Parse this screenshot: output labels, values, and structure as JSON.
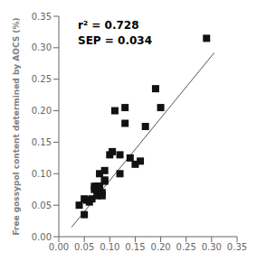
{
  "chart_data": {
    "type": "scatter",
    "title": "",
    "ylabel": "Free gossypol content determined by AOCS (%)",
    "annotation": "r² = 0.728\nSEP = 0.034",
    "xlim": [
      0.0,
      0.35
    ],
    "ylim": [
      0.0,
      0.35
    ],
    "xticks": [
      {
        "value": 0.0,
        "label": "0.00"
      },
      {
        "value": 0.05,
        "label": "0.05"
      },
      {
        "value": 0.1,
        "label": "0.10"
      },
      {
        "value": 0.15,
        "label": "0.15"
      },
      {
        "value": 0.2,
        "label": "0.20"
      },
      {
        "value": 0.25,
        "label": "0.25"
      },
      {
        "value": 0.3,
        "label": "0.30"
      },
      {
        "value": 0.35,
        "label": "0.35"
      }
    ],
    "yticks": [
      {
        "value": 0.0,
        "label": "0.00"
      },
      {
        "value": 0.05,
        "label": "0.05"
      },
      {
        "value": 0.1,
        "label": "0.10"
      },
      {
        "value": 0.15,
        "label": "0.15"
      },
      {
        "value": 0.2,
        "label": "0.20"
      },
      {
        "value": 0.25,
        "label": "0.25"
      },
      {
        "value": 0.3,
        "label": "0.30"
      },
      {
        "value": 0.35,
        "label": "0.35"
      }
    ],
    "grid": false,
    "series": [
      {
        "type": "line",
        "color": "#555555",
        "line_style": "solid",
        "x": [
          0.025,
          0.305
        ],
        "values": [
          0.015,
          0.292
        ]
      },
      {
        "type": "scatter",
        "color": "#111111",
        "marker": "square",
        "x": [
          0.04,
          0.05,
          0.05,
          0.055,
          0.06,
          0.065,
          0.07,
          0.07,
          0.075,
          0.075,
          0.08,
          0.08,
          0.08,
          0.08,
          0.085,
          0.085,
          0.09,
          0.09,
          0.09,
          0.1,
          0.105,
          0.11,
          0.12,
          0.12,
          0.13,
          0.13,
          0.14,
          0.15,
          0.16,
          0.17,
          0.19,
          0.2,
          0.29
        ],
        "values": [
          0.05,
          0.06,
          0.035,
          0.058,
          0.055,
          0.06,
          0.08,
          0.075,
          0.08,
          0.065,
          0.08,
          0.075,
          0.1,
          0.08,
          0.07,
          0.065,
          0.105,
          0.09,
          0.088,
          0.13,
          0.135,
          0.2,
          0.1,
          0.13,
          0.205,
          0.18,
          0.125,
          0.115,
          0.12,
          0.175,
          0.235,
          0.205,
          0.315
        ]
      }
    ]
  }
}
